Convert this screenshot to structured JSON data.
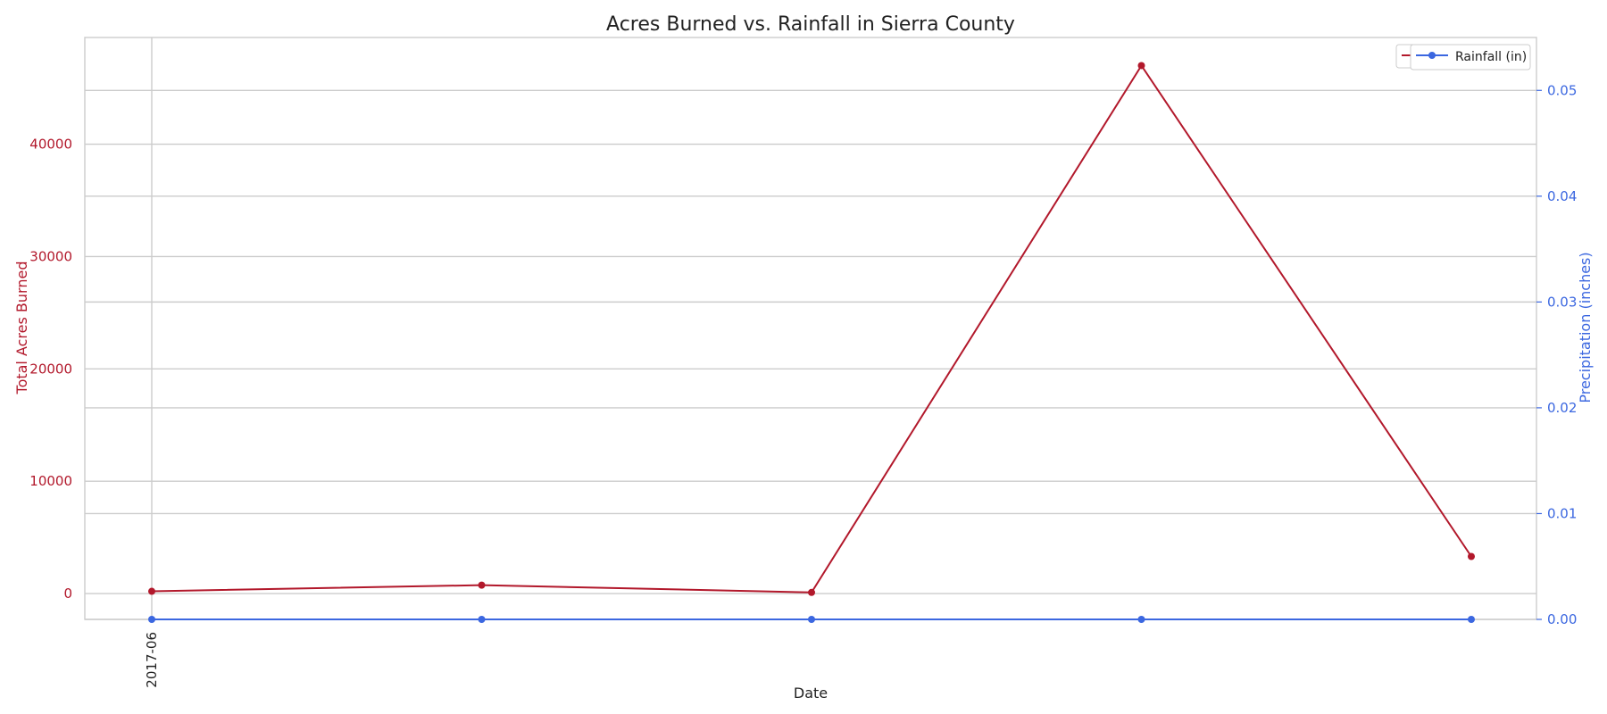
{
  "chart_data": {
    "type": "line",
    "title": "Acres Burned vs. Rainfall in Sierra County",
    "xlabel": "Date",
    "ylabel_left": "Total Acres Burned",
    "ylabel_right": "Precipitation (inches)",
    "x_tick_labels": [
      "2017-06"
    ],
    "x_tick_rotation": "vertical",
    "y_left_range": [
      -2300,
      49500
    ],
    "y_left_ticks": [
      0,
      10000,
      20000,
      30000,
      40000
    ],
    "y_right_range": [
      0,
      0.055
    ],
    "y_right_ticks": [
      0.0,
      0.01,
      0.02,
      0.03,
      0.04,
      0.05
    ],
    "y_right_tick_labels": [
      "0.00",
      "0.01",
      "0.02",
      "0.03",
      "0.04",
      "0.05"
    ],
    "grid": true,
    "legend_position": "top-right",
    "legend_overlap_text": "A",
    "series": [
      {
        "axis": "left",
        "color": "#b2182b",
        "marker": "circle",
        "values": [
          200,
          750,
          100,
          47000,
          3300
        ]
      },
      {
        "name": "Rainfall (in)",
        "axis": "right",
        "color": "#3b67e0",
        "marker": "circle",
        "values": [
          0,
          0,
          0,
          0,
          0
        ]
      }
    ]
  }
}
